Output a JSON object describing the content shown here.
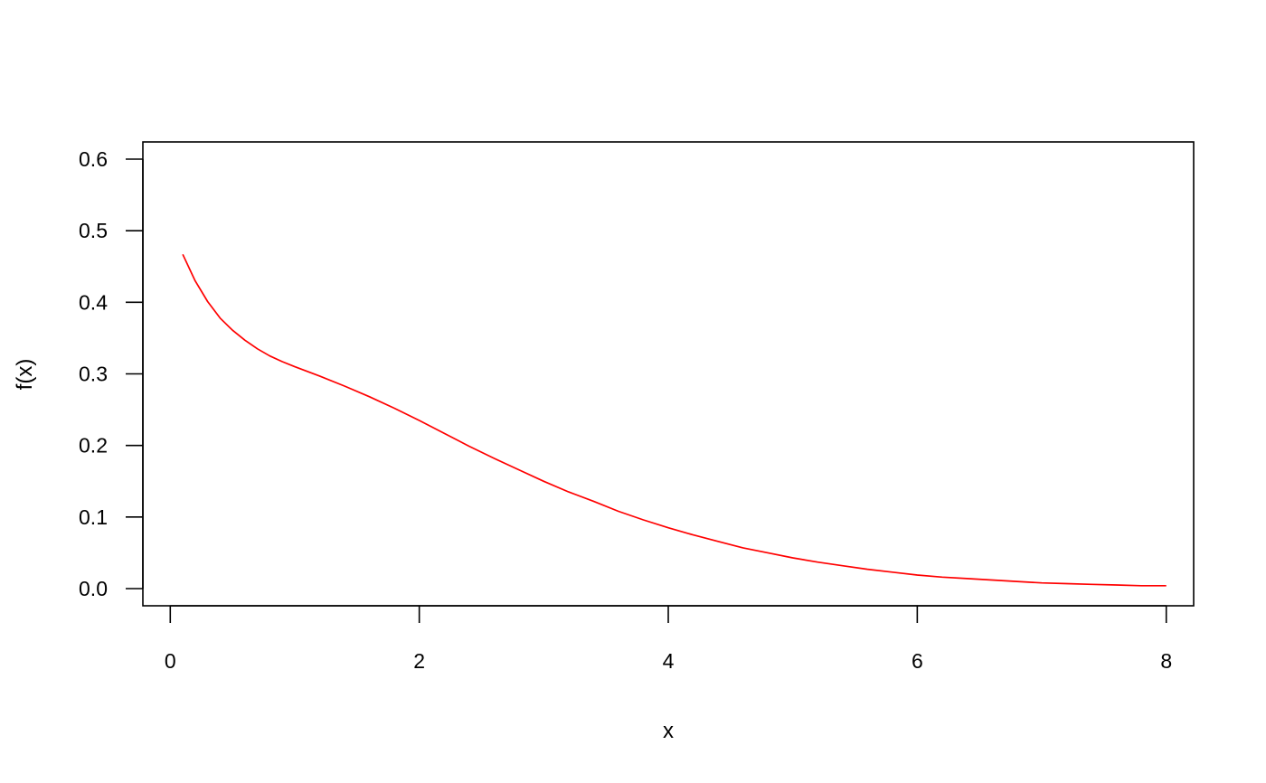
{
  "chart_data": {
    "type": "line",
    "title": "",
    "xlabel": "x",
    "ylabel": "f(x)",
    "xlim": [
      -0.22,
      8.22
    ],
    "ylim": [
      -0.024,
      0.624
    ],
    "x_ticks": [
      0,
      2,
      4,
      6,
      8
    ],
    "x_tick_labels": [
      "0",
      "2",
      "4",
      "6",
      "8"
    ],
    "y_ticks": [
      0.0,
      0.1,
      0.2,
      0.3,
      0.4,
      0.5,
      0.6
    ],
    "y_tick_labels": [
      "0.0",
      "0.1",
      "0.2",
      "0.3",
      "0.4",
      "0.5",
      "0.6"
    ],
    "grid": false,
    "legend": "none",
    "series": [
      {
        "color": "#ff0000",
        "x": [
          0.1,
          0.2,
          0.3,
          0.4,
          0.5,
          0.6,
          0.7,
          0.8,
          0.9,
          1.0,
          1.2,
          1.4,
          1.6,
          1.8,
          2.0,
          2.2,
          2.4,
          2.6,
          2.8,
          3.0,
          3.2,
          3.4,
          3.6,
          3.8,
          4.0,
          4.2,
          4.4,
          4.6,
          4.8,
          5.0,
          5.2,
          5.4,
          5.6,
          5.8,
          6.0,
          6.2,
          6.4,
          6.6,
          6.8,
          7.0,
          7.2,
          7.4,
          7.6,
          7.8,
          8.0
        ],
        "y": [
          0.467,
          0.43,
          0.401,
          0.378,
          0.361,
          0.347,
          0.335,
          0.325,
          0.317,
          0.31,
          0.297,
          0.283,
          0.268,
          0.252,
          0.235,
          0.217,
          0.199,
          0.182,
          0.166,
          0.15,
          0.135,
          0.122,
          0.108,
          0.096,
          0.085,
          0.075,
          0.066,
          0.057,
          0.05,
          0.043,
          0.037,
          0.032,
          0.027,
          0.023,
          0.019,
          0.016,
          0.014,
          0.012,
          0.01,
          0.008,
          0.007,
          0.006,
          0.005,
          0.004,
          0.004
        ]
      }
    ]
  }
}
